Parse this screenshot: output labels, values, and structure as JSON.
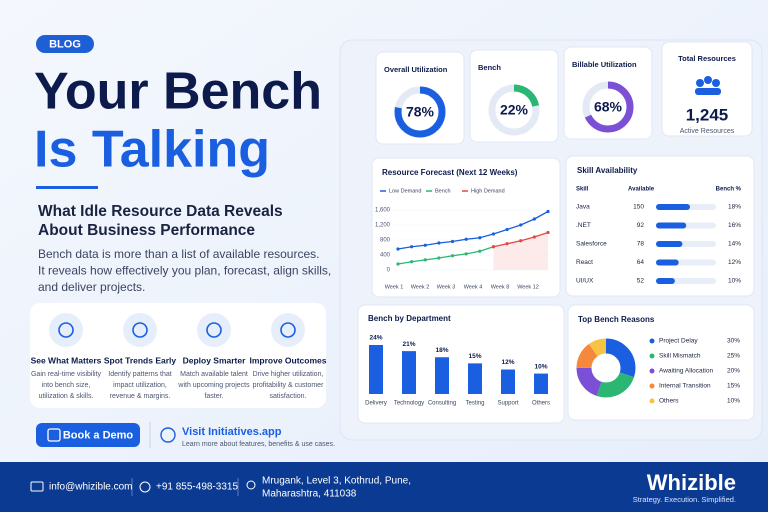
{
  "blog_tag": "BLOG",
  "headline": [
    "Your Bench",
    "Is Talking"
  ],
  "subtitle": [
    "What Idle Resource Data Reveals",
    "About Business Performance"
  ],
  "intro": [
    "Bench data is more than a list of available resources.",
    "It reveals how effectively you plan, forecast, align skills,",
    "and deliver projects."
  ],
  "features": [
    {
      "title": "See What Matters",
      "text": [
        "Gain real-time visibility",
        "into bench size,",
        "utilization & skills."
      ]
    },
    {
      "title": "Spot Trends Early",
      "text": [
        "Identify patterns that",
        "impact utilization,",
        "revenue & margins."
      ]
    },
    {
      "title": "Deploy Smarter",
      "text": [
        "Match available talent",
        "with upcoming projects",
        "faster."
      ]
    },
    {
      "title": "Improve Outcomes",
      "text": [
        "Drive higher utilization,",
        "profitability & customer",
        "satisfaction."
      ]
    }
  ],
  "cta": {
    "button": "Book a Demo",
    "link": "Visit Initiatives.app",
    "link_sub": "Learn more about features, benefits & use cases."
  },
  "footer": {
    "email": "info@whizible.com",
    "phone": "+91 855-498-3315",
    "address": [
      "Mrugank, Level 3, Kothrud, Pune,",
      "Maharashtra, 411038"
    ],
    "brand": "Whizible",
    "tagline": "Strategy. Execution. Simplified."
  },
  "kpis": [
    {
      "title": "Overall Utilization",
      "value": 78,
      "label": "78%",
      "color": "#1a5fe0"
    },
    {
      "title": "Bench",
      "value": 22,
      "label": "22%",
      "color": "#2bb673"
    },
    {
      "title": "Billable Utilization",
      "value": 68,
      "label": "68%",
      "color": "#7b4fd6"
    }
  ],
  "total": {
    "title": "Total Resources",
    "value": "1,245",
    "sub": "Active Resources"
  },
  "forecast": {
    "title": "Resource Forecast (Next 12 Weeks)",
    "categories": [
      "Week 1",
      "Week 2",
      "Week 3",
      "Week 4",
      null,
      null,
      null,
      "Week 8",
      null,
      null,
      null,
      "Week 12"
    ],
    "ylim": [
      0,
      1600
    ],
    "yticks": [
      0,
      400,
      800,
      {
        "value": 1200,
        "label": "1,200"
      },
      {
        "value": 1600,
        "label": "1,600"
      }
    ],
    "series": [
      {
        "name": "Low Demand",
        "color": "#1a5fe0",
        "values": [
          560,
          620,
          660,
          720,
          760,
          820,
          860,
          960,
          1080,
          1200,
          1360,
          1560
        ]
      },
      {
        "name": "Bench",
        "color": "#2bb673",
        "values": [
          160,
          220,
          270,
          320,
          380,
          430,
          500,
          620,
          null,
          null,
          null,
          null
        ]
      },
      {
        "name": "High Demand",
        "color": "#e5483f",
        "values": [
          null,
          null,
          null,
          null,
          null,
          null,
          null,
          620,
          700,
          780,
          880,
          1000
        ]
      }
    ]
  },
  "skills": {
    "title": "Skill Availability",
    "headers": [
      "Skill",
      "Available",
      "Bench %"
    ],
    "rows": [
      {
        "skill": "Java",
        "available": 150,
        "bench": 18,
        "label": "18%"
      },
      {
        "skill": ".NET",
        "available": 92,
        "bench": 16,
        "label": "16%"
      },
      {
        "skill": "Salesforce",
        "available": 78,
        "bench": 14,
        "label": "14%"
      },
      {
        "skill": "React",
        "available": 64,
        "bench": 12,
        "label": "12%"
      },
      {
        "skill": "UI/UX",
        "available": 52,
        "bench": 10,
        "label": "10%"
      }
    ]
  },
  "dept": {
    "title": "Bench by Department",
    "categories": [
      "Delivery",
      "Technology",
      "Consulting",
      "Testing",
      "Support",
      "Others"
    ],
    "values": [
      24,
      21,
      18,
      15,
      12,
      10
    ],
    "value_labels": [
      "24%",
      "21%",
      "18%",
      "15%",
      "12%",
      "10%"
    ],
    "color": "#1a5fe0"
  },
  "reasons": {
    "title": "Top Bench Reasons",
    "categories": [
      "Project Delay",
      "Skill Mismatch",
      "Awaiting Allocation",
      "Internal Transition",
      "Others"
    ],
    "values": [
      30,
      25,
      20,
      15,
      10
    ],
    "value_labels": [
      "30%",
      "25%",
      "20%",
      "15%",
      "10%"
    ],
    "colors": [
      "#1a5fe0",
      "#2bb673",
      "#7b4fd6",
      "#f5883a",
      "#f6c343"
    ]
  }
}
